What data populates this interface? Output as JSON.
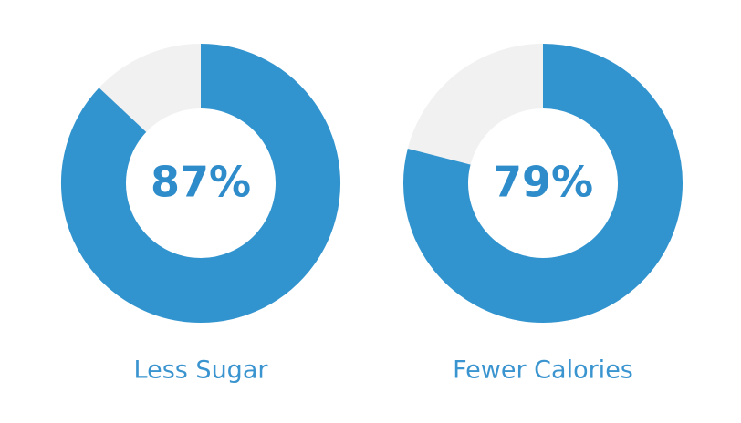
{
  "chart_data": [
    {
      "type": "donut",
      "title": "Less Sugar",
      "values": [
        87
      ],
      "value_labels": [
        "87%"
      ],
      "color": "#3194cf",
      "track_color": "#f1f1f1"
    },
    {
      "type": "donut",
      "title": "Fewer Calories",
      "values": [
        79
      ],
      "value_labels": [
        "79%"
      ],
      "color": "#3194cf",
      "track_color": "#f1f1f1"
    }
  ]
}
